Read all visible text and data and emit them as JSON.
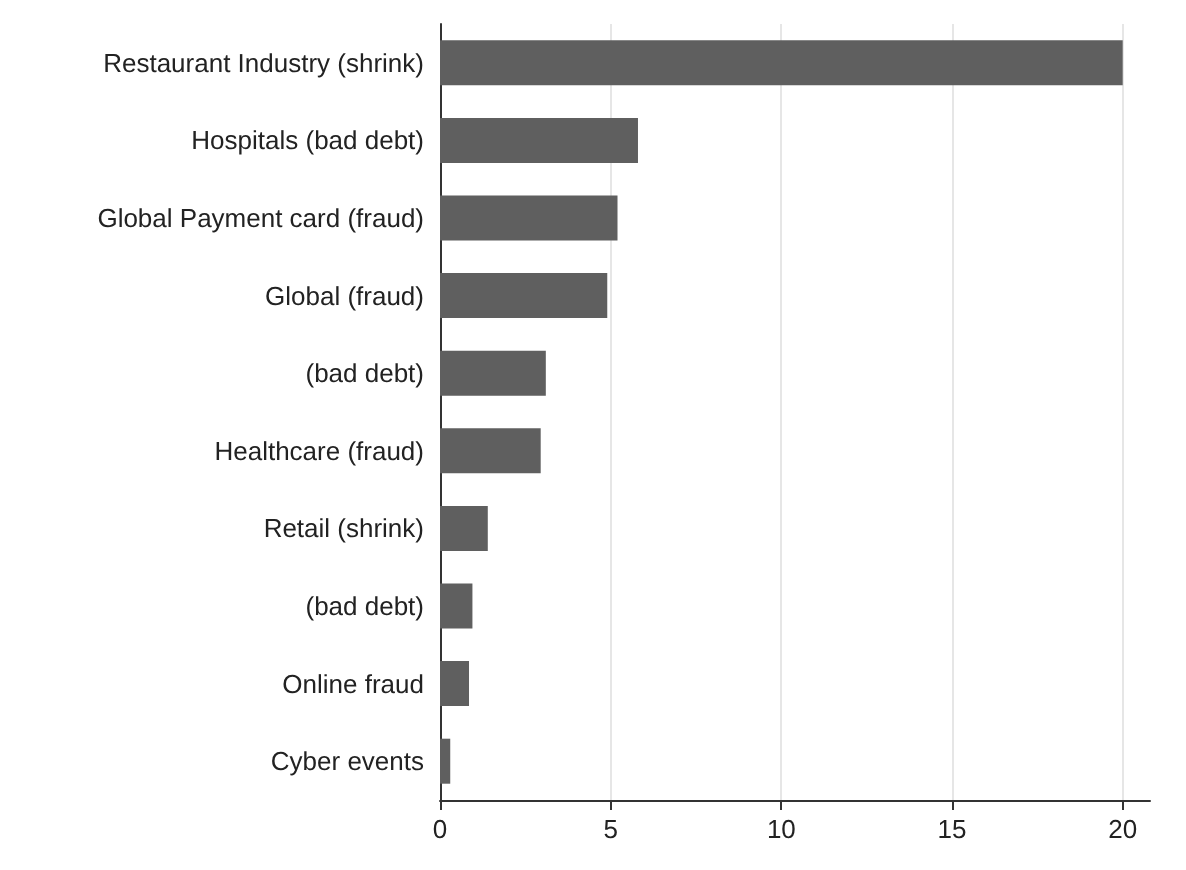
{
  "chart_data": {
    "type": "bar",
    "orientation": "horizontal",
    "categories": [
      "Restaurant Industry (shrink)",
      "Hospitals (bad debt)",
      "Global Payment card (fraud)",
      "Global (fraud)",
      "(bad debt)",
      "Healthcare (fraud)",
      "Retail (shrink)",
      "(bad debt)",
      "Online fraud",
      "Cyber events"
    ],
    "values": [
      20,
      5.8,
      5.2,
      4.9,
      3.1,
      2.95,
      1.4,
      0.95,
      0.85,
      0.3
    ],
    "color": "#5f5f5f",
    "xlim": [
      0,
      20.8
    ],
    "xticks": [
      0,
      5,
      10,
      15,
      20
    ],
    "grid": "x"
  }
}
